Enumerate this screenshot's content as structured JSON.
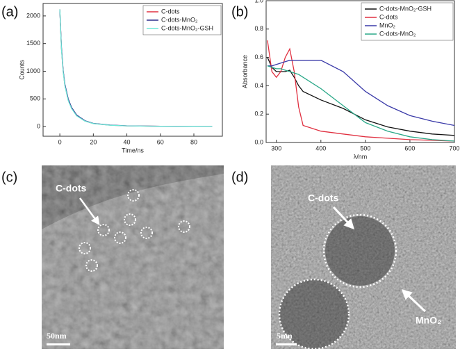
{
  "chart_data": [
    {
      "type": "line",
      "x_label": "Time/ns",
      "y_label": "Counts",
      "x": [
        0,
        1,
        2,
        3,
        5,
        7,
        10,
        15,
        20,
        30,
        40,
        60,
        80,
        91
      ],
      "series": [
        {
          "name": "C-dots",
          "color": "#e03040",
          "values": [
            2120,
            1400,
            1000,
            750,
            480,
            330,
            200,
            100,
            55,
            25,
            12,
            5,
            3,
            2
          ]
        },
        {
          "name": "C-dots-MnO₂",
          "color": "#2a2a8a",
          "values": [
            2100,
            1420,
            1020,
            770,
            500,
            345,
            210,
            105,
            58,
            27,
            13,
            5,
            3,
            2
          ]
        },
        {
          "name": "C-dots-MnO₂-GSH",
          "color": "#6fe8d8",
          "values": [
            2120,
            1380,
            990,
            740,
            470,
            325,
            195,
            98,
            54,
            24,
            12,
            5,
            3,
            2
          ]
        }
      ],
      "xlim": [
        -10,
        97
      ],
      "xticks": [
        0,
        20,
        40,
        60,
        80
      ],
      "ylim": [
        -175,
        2225
      ],
      "yticks": [
        0,
        500,
        1000,
        1500,
        2000
      ],
      "legend": "upper right"
    },
    {
      "type": "line",
      "x_label": "λ/nm",
      "y_label": "Absorbance",
      "x": [
        280,
        290,
        300,
        310,
        320,
        330,
        340,
        350,
        360,
        400,
        450,
        500,
        550,
        600,
        650,
        700
      ],
      "series": [
        {
          "name": "C-dots-MnO₂-GSH",
          "color": "#111111",
          "values": [
            0.6,
            0.53,
            0.5,
            0.5,
            0.5,
            0.51,
            0.46,
            0.4,
            0.36,
            0.3,
            0.24,
            0.16,
            0.11,
            0.08,
            0.06,
            0.05
          ]
        },
        {
          "name": "C-dots",
          "color": "#e03040",
          "values": [
            0.72,
            0.5,
            0.46,
            0.5,
            0.6,
            0.66,
            0.5,
            0.25,
            0.12,
            0.08,
            0.06,
            0.04,
            0.03,
            0.02,
            0.015,
            0.01
          ]
        },
        {
          "name": "MnO₂",
          "color": "#3a3aa8",
          "values": [
            0.54,
            0.54,
            0.55,
            0.56,
            0.57,
            0.58,
            0.58,
            0.58,
            0.58,
            0.58,
            0.5,
            0.36,
            0.26,
            0.19,
            0.15,
            0.12
          ]
        },
        {
          "name": "C-dots-MnO₂",
          "color": "#2aa888",
          "values": [
            0.54,
            0.53,
            0.52,
            0.52,
            0.51,
            0.5,
            0.49,
            0.48,
            0.46,
            0.38,
            0.26,
            0.14,
            0.08,
            0.04,
            0.02,
            0.01
          ]
        }
      ],
      "xlim": [
        277,
        700
      ],
      "xticks": [
        300,
        400,
        500,
        600,
        700
      ],
      "ylim": [
        0,
        1.0
      ],
      "yticks": [
        {
          "value": 0,
          "label": "0.0"
        },
        0.2,
        0.4,
        0.6,
        0.8,
        {
          "value": 1,
          "label": "1.0"
        }
      ],
      "legend": "upper right"
    }
  ],
  "panel_labels": [
    "(a)",
    "(b)",
    "(c)",
    "(d)"
  ],
  "micrographs": [
    {
      "annotations": [
        "C-dots"
      ],
      "scale_bar": "50nm"
    },
    {
      "annotations": [
        "C-dots",
        "MnO₂"
      ],
      "scale_bar": "5nm"
    }
  ]
}
